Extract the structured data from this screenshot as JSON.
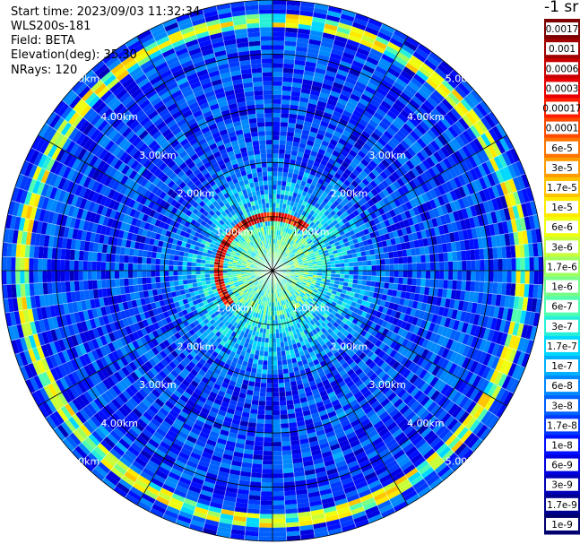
{
  "header": {
    "start_time": "Start time: 2023/09/03 11:32:34",
    "instrument": "WLS200s-181",
    "field": "Field: BETA",
    "elevation": "Elevation(deg): 35.30",
    "nrays": "NRays: 120"
  },
  "colorbar": {
    "title": "-1 sr",
    "labels": [
      "0.0017",
      "0.001",
      "0.0006",
      "0.0003",
      "0.00017",
      "0.0001",
      "6e-5",
      "3e-5",
      "1.7e-5",
      "1e-5",
      "6e-6",
      "3e-6",
      "1.7e-6",
      "1e-6",
      "6e-7",
      "3e-7",
      "1.7e-7",
      "1e-7",
      "6e-8",
      "3e-8",
      "1.7e-8",
      "1e-8",
      "6e-9",
      "3e-9",
      "1.7e-9",
      "1e-9"
    ],
    "colors": [
      "#7f0000",
      "#a00000",
      "#c80000",
      "#e80000",
      "#ff1e00",
      "#ff4a00",
      "#ff7400",
      "#ff9c00",
      "#ffc400",
      "#ffea00",
      "#f0ff10",
      "#c8ff38",
      "#a0ff60",
      "#78ff88",
      "#50ffb0",
      "#28f0d8",
      "#00d8ff",
      "#00b0ff",
      "#0088ff",
      "#0060ff",
      "#0038ff",
      "#0010ff",
      "#0000e0",
      "#0000b8",
      "#000090",
      "#00006e"
    ]
  },
  "chart_data": {
    "type": "heatmap",
    "subtype": "polar-ppi",
    "range_rings_km": [
      1,
      2,
      3,
      4,
      5
    ],
    "ring_labels": [
      "1.00km",
      "2.00km",
      "3.00km",
      "4.00km",
      "5.00km"
    ],
    "max_range_km": 5.0,
    "spokes_deg": [
      0,
      30,
      60,
      90,
      120,
      150,
      180,
      210,
      240,
      270,
      300,
      330
    ],
    "color_scale": "log",
    "value_range": [
      1e-09,
      0.0017
    ],
    "features": [
      {
        "name": "strong return arc",
        "range_km": 1.0,
        "azimuth_deg": [
          230,
          40
        ],
        "value": 0.0003
      },
      {
        "name": "aerosol ring",
        "range_km": 4.6,
        "azimuth_deg": [
          0,
          360
        ],
        "value": 6e-06
      },
      {
        "name": "near-field background",
        "range_km": [
          0,
          2
        ],
        "value": 3e-07
      },
      {
        "name": "far-field background",
        "range_km": [
          2,
          5
        ],
        "value": 1.7e-08
      }
    ]
  }
}
